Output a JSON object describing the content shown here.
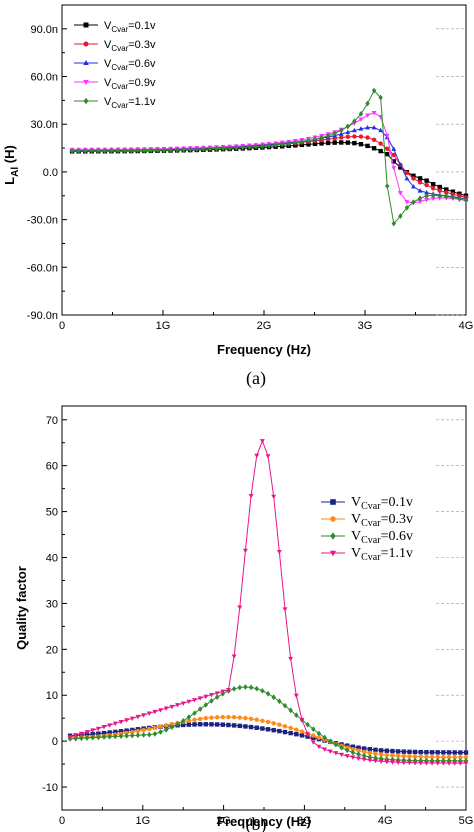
{
  "chart_data": [
    {
      "type": "line",
      "panel_label": "(a)",
      "xlabel": "Frequency (Hz)",
      "ylabel_main": "L",
      "ylabel_sub": "Al",
      "ylabel_tail": " (H)",
      "xlim": [
        0,
        4
      ],
      "ylim": [
        -90,
        105
      ],
      "x_ticks": [
        0,
        1,
        2,
        3,
        4
      ],
      "x_tick_labels": [
        "0",
        "1G",
        "2G",
        "3G",
        "4G"
      ],
      "y_ticks": [
        -90,
        -60,
        -30,
        0,
        30,
        60,
        90
      ],
      "y_tick_labels": [
        "-90.0n",
        "-60.0n",
        "-30.0n",
        "0.0",
        "30.0n",
        "60.0n",
        "90.0n"
      ],
      "legend_position": "top-left",
      "series": [
        {
          "label_main": "V",
          "label_sub": "Cvar",
          "label_tail": "=0.1v",
          "color": "#000000",
          "marker": "square",
          "resonance": {
            "A": 14,
            "f0": 3.22,
            "w": 0.28,
            "base": 9,
            "slope": 2.2,
            "end": -15
          }
        },
        {
          "label_main": "V",
          "label_sub": "Cvar",
          "label_tail": "=0.3v",
          "color": "#e8192c",
          "marker": "circle",
          "resonance": {
            "A": 21,
            "f0": 3.28,
            "w": 0.22,
            "base": 9,
            "slope": 2.2,
            "end": -16
          }
        },
        {
          "label_main": "V",
          "label_sub": "Cvar",
          "label_tail": "=0.6v",
          "color": "#1f2fe6",
          "marker": "triangle-up",
          "resonance": {
            "A": 32,
            "f0": 3.31,
            "w": 0.15,
            "base": 9,
            "slope": 2.2,
            "end": -17
          }
        },
        {
          "label_main": "V",
          "label_sub": "Cvar",
          "label_tail": "=0.9v",
          "color": "#ff33ff",
          "marker": "triangle-down",
          "resonance": {
            "A": 50,
            "f0": 3.26,
            "w": 0.1,
            "base": 9,
            "slope": 2.2,
            "end": -18
          }
        },
        {
          "label_main": "V",
          "label_sub": "Cvar",
          "label_tail": "=1.1v",
          "color": "#2e8b2e",
          "marker": "diamond",
          "resonance": {
            "A": 82,
            "f0": 3.2,
            "w": 0.05,
            "base": 9,
            "slope": 2.2,
            "end": -18
          }
        }
      ]
    },
    {
      "type": "line",
      "panel_label": "(b)",
      "xlabel": "Frequency (Hz)",
      "ylabel": "Quality factor",
      "xlim": [
        0,
        5
      ],
      "ylim": [
        -15,
        73
      ],
      "x_ticks": [
        0,
        1,
        2,
        3,
        4,
        5
      ],
      "x_tick_labels": [
        "0",
        "1G",
        "2G",
        "3G",
        "4G",
        "5G"
      ],
      "y_ticks": [
        -10,
        0,
        10,
        20,
        30,
        40,
        50,
        60,
        70
      ],
      "y_tick_labels": [
        "-10",
        "0",
        "10",
        "20",
        "30",
        "40",
        "50",
        "60",
        "70"
      ],
      "legend_position": "top-right",
      "series": [
        {
          "label_main": "V",
          "label_sub": "Cvar",
          "label_tail": "=0.1v",
          "color": "#1a237e",
          "marker": "square",
          "shape": {
            "peak": 3.6,
            "fp": 1.8,
            "sigma": 0.95,
            "neg": -2.5
          }
        },
        {
          "label_main": "V",
          "label_sub": "Cvar",
          "label_tail": "=0.3v",
          "color": "#ff8c1a",
          "marker": "circle",
          "shape": {
            "peak": 5.2,
            "fp": 2.05,
            "sigma": 0.8,
            "neg": -3.5
          }
        },
        {
          "label_main": "V",
          "label_sub": "Cvar",
          "label_tail": "=0.6v",
          "color": "#2e8b2e",
          "marker": "diamond",
          "shape": {
            "peak": 11.8,
            "fp": 2.28,
            "sigma": 0.55,
            "neg": -4.3
          }
        },
        {
          "label_main": "V",
          "label_sub": "Cvar",
          "label_tail": "=1.1v",
          "color": "#e8178a",
          "marker": "triangle-down",
          "shape": {
            "peak": 65.5,
            "fp": 2.48,
            "sigma": 0.22,
            "neg": -4.8
          }
        }
      ]
    }
  ]
}
